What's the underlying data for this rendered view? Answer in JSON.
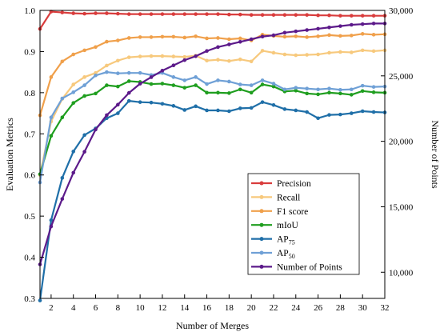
{
  "chart_data": {
    "type": "line",
    "xlabel": "Number of Merges",
    "ylabel_left": "Evaluation Metrics",
    "ylabel_right": "Number of Points",
    "x": [
      1,
      2,
      3,
      4,
      5,
      6,
      7,
      8,
      9,
      10,
      11,
      12,
      13,
      14,
      15,
      16,
      17,
      18,
      19,
      20,
      21,
      22,
      23,
      24,
      25,
      26,
      27,
      28,
      29,
      30,
      31,
      32
    ],
    "xlim": [
      1,
      32
    ],
    "xticks": [
      2,
      4,
      6,
      8,
      10,
      12,
      14,
      16,
      18,
      20,
      22,
      24,
      26,
      28,
      30,
      32
    ],
    "ylim_left": [
      0.3,
      1.0
    ],
    "yticks_left": [
      "0.3",
      "0.4",
      "0.5",
      "0.6",
      "0.7",
      "0.8",
      "0.9",
      "1.0"
    ],
    "ylim_right": [
      8000,
      30000
    ],
    "yticks_right": [
      "10,000",
      "15,000",
      "20,000",
      "25,000",
      "30,000"
    ],
    "yticks_right_values": [
      10000,
      15000,
      20000,
      25000,
      30000
    ],
    "legend_position": "bottom-right",
    "series": [
      {
        "name": "Precision",
        "axis": "left",
        "color": "#d93c3c",
        "values": [
          0.955,
          0.997,
          0.995,
          0.993,
          0.992,
          0.993,
          0.993,
          0.992,
          0.991,
          0.991,
          0.991,
          0.991,
          0.991,
          0.991,
          0.991,
          0.991,
          0.991,
          0.99,
          0.99,
          0.989,
          0.989,
          0.989,
          0.989,
          0.989,
          0.989,
          0.988,
          0.988,
          0.987,
          0.987,
          0.987,
          0.987,
          0.987
        ]
      },
      {
        "name": "Recall",
        "axis": "left",
        "color": "#f7c97d",
        "values": [
          0.6,
          0.73,
          0.785,
          0.82,
          0.838,
          0.848,
          0.866,
          0.878,
          0.886,
          0.888,
          0.889,
          0.889,
          0.888,
          0.887,
          0.89,
          0.878,
          0.88,
          0.877,
          0.881,
          0.876,
          0.902,
          0.897,
          0.893,
          0.891,
          0.892,
          0.893,
          0.897,
          0.899,
          0.898,
          0.903,
          0.901,
          0.903
        ]
      },
      {
        "name": "F1 score",
        "axis": "left",
        "color": "#f0a04b",
        "values": [
          0.745,
          0.838,
          0.876,
          0.893,
          0.903,
          0.911,
          0.924,
          0.927,
          0.933,
          0.935,
          0.935,
          0.936,
          0.936,
          0.934,
          0.937,
          0.932,
          0.933,
          0.93,
          0.932,
          0.927,
          0.941,
          0.938,
          0.936,
          0.937,
          0.935,
          0.937,
          0.94,
          0.938,
          0.939,
          0.943,
          0.941,
          0.942
        ]
      },
      {
        "name": "mIoU",
        "axis": "left",
        "color": "#1f9e1f",
        "values": [
          0.602,
          0.695,
          0.74,
          0.775,
          0.792,
          0.798,
          0.818,
          0.815,
          0.828,
          0.826,
          0.821,
          0.822,
          0.818,
          0.812,
          0.818,
          0.8,
          0.8,
          0.799,
          0.808,
          0.8,
          0.82,
          0.815,
          0.803,
          0.805,
          0.798,
          0.796,
          0.8,
          0.798,
          0.795,
          0.804,
          0.801,
          0.8
        ]
      },
      {
        "name": "AP_75",
        "base": "AP",
        "sub": "75",
        "axis": "left",
        "color": "#1f6fa8",
        "values": [
          0.295,
          0.49,
          0.593,
          0.657,
          0.697,
          0.713,
          0.738,
          0.75,
          0.78,
          0.777,
          0.776,
          0.773,
          0.768,
          0.758,
          0.767,
          0.757,
          0.757,
          0.755,
          0.762,
          0.763,
          0.777,
          0.77,
          0.76,
          0.757,
          0.753,
          0.738,
          0.746,
          0.747,
          0.75,
          0.755,
          0.753,
          0.752
        ]
      },
      {
        "name": "AP_50",
        "base": "AP",
        "sub": "50",
        "axis": "left",
        "color": "#6fa0d6",
        "values": [
          0.582,
          0.74,
          0.786,
          0.801,
          0.818,
          0.842,
          0.85,
          0.847,
          0.848,
          0.848,
          0.843,
          0.848,
          0.838,
          0.83,
          0.838,
          0.821,
          0.83,
          0.827,
          0.82,
          0.818,
          0.83,
          0.822,
          0.808,
          0.812,
          0.81,
          0.808,
          0.81,
          0.807,
          0.808,
          0.817,
          0.814,
          0.815
        ]
      },
      {
        "name": "Number of Points",
        "axis": "right",
        "color": "#5c1a8a",
        "values": [
          10600,
          13500,
          15600,
          17600,
          19200,
          20900,
          22000,
          22800,
          23700,
          24400,
          24900,
          25400,
          25800,
          26200,
          26500,
          26900,
          27200,
          27400,
          27600,
          27800,
          28000,
          28100,
          28300,
          28400,
          28500,
          28600,
          28700,
          28800,
          28900,
          28950,
          29000,
          29000
        ]
      }
    ]
  }
}
